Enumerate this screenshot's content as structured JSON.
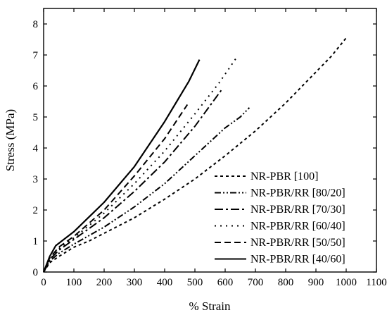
{
  "chart_data": {
    "type": "line",
    "title": "",
    "xlabel": "% Strain",
    "ylabel": "Stress (MPa)",
    "xlim": [
      0,
      1100
    ],
    "ylim": [
      0,
      8.5
    ],
    "xticks": [
      0,
      100,
      200,
      300,
      400,
      500,
      600,
      700,
      800,
      900,
      1000,
      1100
    ],
    "yticks": [
      0,
      1,
      2,
      3,
      4,
      5,
      6,
      7,
      8
    ],
    "grid": false,
    "legend_position": "bottom-right",
    "series": [
      {
        "name": "NR-PBR [100]",
        "dash": "4,4",
        "x": [
          0,
          20,
          50,
          100,
          150,
          200,
          300,
          400,
          500,
          600,
          700,
          800,
          900,
          950,
          1000
        ],
        "y": [
          0,
          0.3,
          0.5,
          0.8,
          1.0,
          1.25,
          1.75,
          2.35,
          3.0,
          3.75,
          4.55,
          5.45,
          6.45,
          6.95,
          7.55
        ]
      },
      {
        "name": "NR-PBR/RR [80/20]",
        "dash": "9,3,2,3,2,3",
        "x": [
          0,
          20,
          50,
          100,
          200,
          300,
          400,
          500,
          600,
          650,
          680
        ],
        "y": [
          0,
          0.35,
          0.6,
          0.9,
          1.45,
          2.1,
          2.85,
          3.75,
          4.65,
          5.0,
          5.3
        ]
      },
      {
        "name": "NR-PBR/RR [70/30]",
        "dash": "12,4,3,4",
        "x": [
          0,
          20,
          50,
          100,
          200,
          300,
          400,
          500,
          590
        ],
        "y": [
          0,
          0.4,
          0.7,
          1.05,
          1.75,
          2.6,
          3.55,
          4.7,
          5.9
        ]
      },
      {
        "name": "NR-PBR/RR [60/40]",
        "dash": "2,6",
        "x": [
          0,
          20,
          50,
          100,
          200,
          300,
          400,
          500,
          580,
          640
        ],
        "y": [
          0,
          0.4,
          0.75,
          1.1,
          1.9,
          2.85,
          3.9,
          5.1,
          6.1,
          6.95
        ]
      },
      {
        "name": "NR-PBR/RR [50/50]",
        "dash": "9,5",
        "x": [
          0,
          20,
          50,
          100,
          200,
          300,
          400,
          475
        ],
        "y": [
          0,
          0.45,
          0.8,
          1.15,
          2.0,
          3.1,
          4.3,
          5.4
        ]
      },
      {
        "name": "NR-PBR/RR [40/60]",
        "dash": "",
        "x": [
          0,
          20,
          40,
          100,
          200,
          300,
          400,
          480,
          515
        ],
        "y": [
          0,
          0.5,
          0.85,
          1.3,
          2.25,
          3.4,
          4.85,
          6.15,
          6.85
        ]
      }
    ]
  }
}
